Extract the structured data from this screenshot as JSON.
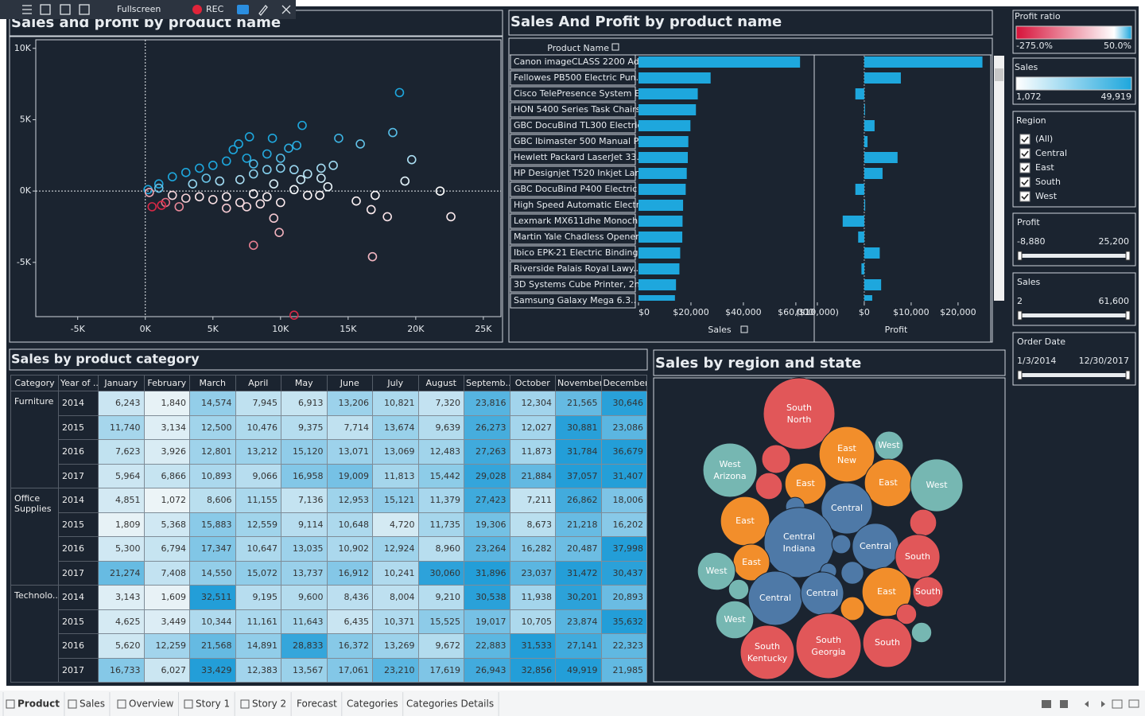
{
  "toolbar": {
    "fullscreen": "Fullscreen",
    "rec": "REC"
  },
  "scatter": {
    "type": "scatter",
    "title": "Sales and profit by product name",
    "x": [
      18800,
      11600,
      18300,
      14300,
      15900,
      7700,
      9400,
      6900,
      11200,
      10600,
      19700,
      13900,
      13000,
      19200,
      13000,
      21800,
      17000,
      15600,
      12900,
      11000,
      16700,
      17900,
      22600,
      9500,
      9900,
      8000,
      16800,
      11000,
      1000,
      2000,
      3000,
      4000,
      5000,
      6000,
      2000,
      3000,
      4000,
      5000,
      6000,
      7000,
      8000,
      1500,
      500,
      1200,
      2500,
      7000,
      8000,
      9000,
      10000,
      6500,
      7500,
      8000,
      9000,
      10000,
      11000,
      12000,
      9500,
      7500,
      6000,
      8500,
      9000,
      10000,
      3500,
      4500,
      5500,
      200,
      300,
      1000,
      12000,
      13500,
      11500
    ],
    "y": [
      6900,
      4600,
      4100,
      3700,
      3300,
      3800,
      3700,
      3300,
      3200,
      3000,
      2200,
      1800,
      1600,
      700,
      900,
      0,
      -300,
      -700,
      -300,
      100,
      -1300,
      -1800,
      -1800,
      -1900,
      -2900,
      -3800,
      -4600,
      -8700,
      500,
      1000,
      1300,
      1600,
      1800,
      2100,
      -300,
      -500,
      -400,
      -600,
      -400,
      -800,
      -200,
      -800,
      -1100,
      -1000,
      -1100,
      800,
      1200,
      1500,
      1600,
      2900,
      2300,
      1900,
      2600,
      2300,
      1500,
      1200,
      500,
      -1100,
      -1200,
      -900,
      -400,
      -800,
      500,
      900,
      700,
      100,
      -100,
      200,
      -300,
      300,
      800
    ],
    "xlim": [
      -8100,
      26300
    ],
    "ylim": [
      -8800,
      10600
    ],
    "xticks": [
      {
        "value": -5000,
        "label": "-5K"
      },
      {
        "value": 0,
        "label": "0K"
      },
      {
        "value": 5000,
        "label": "5K"
      },
      {
        "value": 10000,
        "label": "10K"
      },
      {
        "value": 15000,
        "label": "15K"
      },
      {
        "value": 20000,
        "label": "20K"
      },
      {
        "value": 25000,
        "label": "25K"
      }
    ],
    "yticks": [
      {
        "value": -5000,
        "label": "-5K"
      },
      {
        "value": 0,
        "label": "0K"
      },
      {
        "value": 5000,
        "label": "5K"
      },
      {
        "value": 10000,
        "label": "10K"
      }
    ]
  },
  "bars": {
    "type": "bar",
    "title": "Sales And Profit by product name",
    "column_header": "Product Name",
    "color": "#1ea7dd",
    "categories": [
      "Canon imageCLASS 2200 Ad..",
      "Fellowes PB500 Electric Pun..",
      "Cisco TelePresence System E..",
      "HON 5400 Series Task Chairs..",
      "GBC DocuBind TL300 Electric..",
      "GBC Ibimaster 500 Manual P..",
      "Hewlett Packard LaserJet 33..",
      "HP Designjet T520 Inkjet Lar..",
      "GBC DocuBind P400 Electric ..",
      "High Speed Automatic Electr..",
      "Lexmark MX611dhe Monoch..",
      "Martin Yale Chadless Opener..",
      "Ibico EPK-21 Electric Binding..",
      "Riverside Palais Royal Lawy..",
      "3D Systems Cube Printer, 2n..",
      "Samsung Galaxy Mega 6.3.."
    ],
    "sales": {
      "name": "Sales",
      "values": [
        61600,
        27500,
        22600,
        21900,
        19800,
        19000,
        18800,
        18400,
        18000,
        17000,
        16800,
        16700,
        15900,
        15600,
        14300,
        13900
      ],
      "xlim": [
        0,
        66700
      ],
      "xticks": [
        {
          "value": 0,
          "label": "$0"
        },
        {
          "value": 20000,
          "label": "$20,000"
        },
        {
          "value": 40000,
          "label": "$40,000"
        },
        {
          "value": 60000,
          "label": "$60,000"
        }
      ]
    },
    "profit": {
      "name": "Profit",
      "values": [
        25200,
        7800,
        -1900,
        0,
        2200,
        700,
        7100,
        3900,
        -1900,
        200,
        -4600,
        -1300,
        3300,
        -600,
        3600,
        1700
      ],
      "xlim": [
        -10500,
        26800
      ],
      "xticks": [
        {
          "value": -10000,
          "label": "($10,000)"
        },
        {
          "value": 0,
          "label": "$0"
        },
        {
          "value": 10000,
          "label": "$10,000"
        },
        {
          "value": 20000,
          "label": "$20,000"
        }
      ]
    }
  },
  "table": {
    "title": "Sales by product category",
    "header": [
      "Category",
      "Year of ..",
      "January",
      "February",
      "March",
      "April",
      "May",
      "June",
      "July",
      "August",
      "Septemb..",
      "October",
      "November",
      "December"
    ],
    "groups": [
      {
        "category": "Furniture",
        "rows": [
          {
            "year": "2014",
            "cells": [
              "6,243",
              "1,840",
              "14,574",
              "7,945",
              "6,913",
              "13,206",
              "10,821",
              "7,320",
              "23,816",
              "12,304",
              "21,565",
              "30,646"
            ]
          },
          {
            "year": "2015",
            "cells": [
              "11,740",
              "3,134",
              "12,500",
              "10,476",
              "9,375",
              "7,714",
              "13,674",
              "9,639",
              "26,273",
              "12,027",
              "30,881",
              "23,086"
            ]
          },
          {
            "year": "2016",
            "cells": [
              "7,623",
              "3,926",
              "12,801",
              "13,212",
              "15,120",
              "13,071",
              "13,069",
              "12,483",
              "27,263",
              "11,873",
              "31,784",
              "36,679"
            ]
          },
          {
            "year": "2017",
            "cells": [
              "5,964",
              "6,866",
              "10,893",
              "9,066",
              "16,958",
              "19,009",
              "11,813",
              "15,442",
              "29,028",
              "21,884",
              "37,057",
              "31,407"
            ]
          }
        ]
      },
      {
        "category": "Office Supplies",
        "rows": [
          {
            "year": "2014",
            "cells": [
              "4,851",
              "1,072",
              "8,606",
              "11,155",
              "7,136",
              "12,953",
              "15,121",
              "11,379",
              "27,423",
              "7,211",
              "26,862",
              "18,006"
            ]
          },
          {
            "year": "2015",
            "cells": [
              "1,809",
              "5,368",
              "15,883",
              "12,559",
              "9,114",
              "10,648",
              "4,720",
              "11,735",
              "19,306",
              "8,673",
              "21,218",
              "16,202"
            ]
          },
          {
            "year": "2016",
            "cells": [
              "5,300",
              "6,794",
              "17,347",
              "10,647",
              "13,035",
              "10,902",
              "12,924",
              "8,960",
              "23,264",
              "16,282",
              "20,487",
              "37,998"
            ]
          },
          {
            "year": "2017",
            "cells": [
              "21,274",
              "7,408",
              "14,550",
              "15,072",
              "13,737",
              "16,912",
              "10,241",
              "30,060",
              "31,896",
              "23,037",
              "31,472",
              "30,437"
            ]
          }
        ]
      },
      {
        "category": "Technolo..",
        "rows": [
          {
            "year": "2014",
            "cells": [
              "3,143",
              "1,609",
              "32,511",
              "9,195",
              "9,600",
              "8,436",
              "8,004",
              "9,210",
              "30,538",
              "11,938",
              "30,201",
              "20,893"
            ]
          },
          {
            "year": "2015",
            "cells": [
              "4,625",
              "3,449",
              "10,344",
              "11,161",
              "11,643",
              "6,435",
              "10,371",
              "15,525",
              "19,017",
              "10,705",
              "23,874",
              "35,632"
            ]
          },
          {
            "year": "2016",
            "cells": [
              "5,620",
              "12,259",
              "21,568",
              "14,891",
              "28,833",
              "16,372",
              "13,269",
              "9,672",
              "22,883",
              "31,533",
              "27,141",
              "22,323"
            ]
          },
          {
            "year": "2017",
            "cells": [
              "16,733",
              "6,027",
              "33,429",
              "12,383",
              "13,567",
              "17,061",
              "23,210",
              "17,619",
              "26,943",
              "32,856",
              "49,919",
              "21,985"
            ]
          }
        ]
      }
    ]
  },
  "bubbles": {
    "type": "bubble",
    "title": "Sales by region and state",
    "items": [
      {
        "label": "South",
        "sublabel": "North",
        "color": "#e15759",
        "value": 100
      },
      {
        "label": "East",
        "sublabel": "New",
        "color": "#f28e2b",
        "value": 60
      },
      {
        "label": "West",
        "color": "#76b7b2",
        "value": 16
      },
      {
        "label": "West",
        "sublabel": "Arizona",
        "color": "#76b7b2",
        "value": 57
      },
      {
        "color": "#e15759",
        "value": 16
      },
      {
        "label": "East",
        "color": "#f28e2b",
        "value": 33
      },
      {
        "label": "East",
        "color": "#f28e2b",
        "value": 44
      },
      {
        "label": "West",
        "color": "#76b7b2",
        "value": 54
      },
      {
        "color": "#e15759",
        "value": 14
      },
      {
        "label": "Central",
        "color": "#4e79a7",
        "value": 51
      },
      {
        "color": "#4e79a7",
        "value": 7
      },
      {
        "color": "#e15759",
        "value": 14
      },
      {
        "label": "East",
        "color": "#f28e2b",
        "value": 47
      },
      {
        "label": "Central",
        "sublabel": "Indiana",
        "color": "#4e79a7",
        "value": 96
      },
      {
        "label": "Central",
        "color": "#4e79a7",
        "value": 42
      },
      {
        "label": "South",
        "color": "#e15759",
        "value": 39
      },
      {
        "label": "East",
        "color": "#f28e2b",
        "value": 26
      },
      {
        "label": "West",
        "color": "#76b7b2",
        "value": 28
      },
      {
        "color": "#4e79a7",
        "value": 7
      },
      {
        "color": "#4e79a7",
        "value": 10
      },
      {
        "color": "#4e79a7",
        "value": 5
      },
      {
        "label": "Central",
        "color": "#4e79a7",
        "value": 57
      },
      {
        "label": "Central",
        "color": "#4e79a7",
        "value": 36
      },
      {
        "label": "East",
        "color": "#f28e2b",
        "value": 47
      },
      {
        "label": "South",
        "color": "#e15759",
        "value": 18
      },
      {
        "color": "#76b7b2",
        "value": 8
      },
      {
        "color": "#f28e2b",
        "value": 11
      },
      {
        "label": "West",
        "color": "#76b7b2",
        "value": 28
      },
      {
        "color": "#e15759",
        "value": 8
      },
      {
        "label": "South",
        "sublabel": "Kentucky",
        "color": "#e15759",
        "value": 57
      },
      {
        "label": "South",
        "sublabel": "Georgia",
        "color": "#e15759",
        "value": 83
      },
      {
        "label": "South",
        "color": "#e15759",
        "value": 47
      },
      {
        "color": "#76b7b2",
        "value": 8
      }
    ]
  },
  "filters": {
    "profit_ratio": {
      "title": "Profit ratio",
      "min": "-275.0%",
      "max": "50.0%"
    },
    "sales_legend": {
      "title": "Sales",
      "min": "1,072",
      "max": "49,919"
    },
    "region": {
      "title": "Region",
      "options": [
        "(All)",
        "Central",
        "East",
        "South",
        "West"
      ]
    },
    "profit": {
      "title": "Profit",
      "min": "-8,880",
      "max": "25,200"
    },
    "sales": {
      "title": "Sales",
      "min": "2",
      "max": "61,600"
    },
    "order_date": {
      "title": "Order Date",
      "min": "1/3/2014",
      "max": "12/30/2017"
    }
  },
  "tabs": [
    "Product",
    "Sales",
    "Overview",
    "Story 1",
    "Story 2",
    "Forecast",
    "Categories",
    "Categories Details"
  ]
}
